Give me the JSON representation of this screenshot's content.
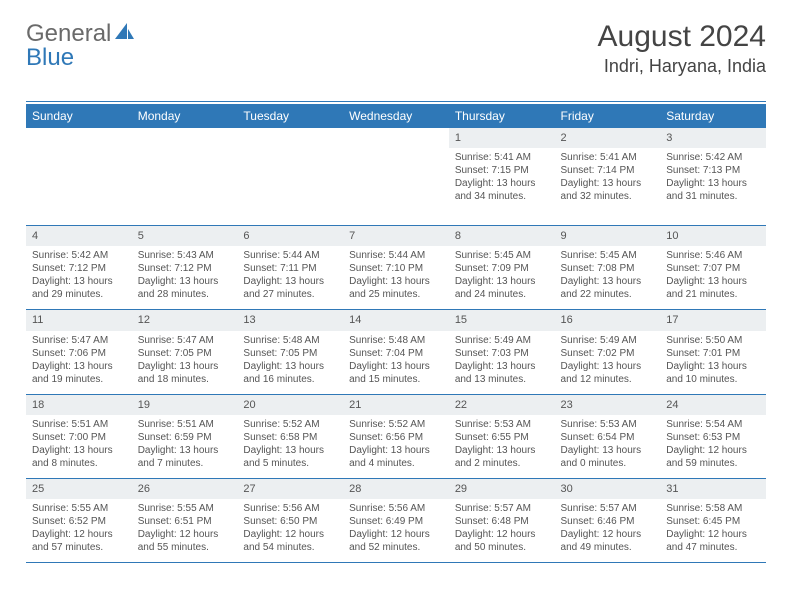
{
  "logo": {
    "word1": "General",
    "word2": "Blue"
  },
  "header": {
    "month_title": "August 2024",
    "location": "Indri, Haryana, India"
  },
  "colors": {
    "header_bg": "#2f78b7",
    "header_fg": "#ffffff",
    "daynum_bg": "#eceff1",
    "rule": "#2f78b7",
    "text": "#555555"
  },
  "day_headers": [
    "Sunday",
    "Monday",
    "Tuesday",
    "Wednesday",
    "Thursday",
    "Friday",
    "Saturday"
  ],
  "weeks": [
    [
      {
        "blank": true
      },
      {
        "blank": true
      },
      {
        "blank": true
      },
      {
        "blank": true
      },
      {
        "num": "1",
        "sunrise": "Sunrise: 5:41 AM",
        "sunset": "Sunset: 7:15 PM",
        "dl1": "Daylight: 13 hours",
        "dl2": "and 34 minutes."
      },
      {
        "num": "2",
        "sunrise": "Sunrise: 5:41 AM",
        "sunset": "Sunset: 7:14 PM",
        "dl1": "Daylight: 13 hours",
        "dl2": "and 32 minutes."
      },
      {
        "num": "3",
        "sunrise": "Sunrise: 5:42 AM",
        "sunset": "Sunset: 7:13 PM",
        "dl1": "Daylight: 13 hours",
        "dl2": "and 31 minutes."
      }
    ],
    [
      {
        "num": "4",
        "sunrise": "Sunrise: 5:42 AM",
        "sunset": "Sunset: 7:12 PM",
        "dl1": "Daylight: 13 hours",
        "dl2": "and 29 minutes."
      },
      {
        "num": "5",
        "sunrise": "Sunrise: 5:43 AM",
        "sunset": "Sunset: 7:12 PM",
        "dl1": "Daylight: 13 hours",
        "dl2": "and 28 minutes."
      },
      {
        "num": "6",
        "sunrise": "Sunrise: 5:44 AM",
        "sunset": "Sunset: 7:11 PM",
        "dl1": "Daylight: 13 hours",
        "dl2": "and 27 minutes."
      },
      {
        "num": "7",
        "sunrise": "Sunrise: 5:44 AM",
        "sunset": "Sunset: 7:10 PM",
        "dl1": "Daylight: 13 hours",
        "dl2": "and 25 minutes."
      },
      {
        "num": "8",
        "sunrise": "Sunrise: 5:45 AM",
        "sunset": "Sunset: 7:09 PM",
        "dl1": "Daylight: 13 hours",
        "dl2": "and 24 minutes."
      },
      {
        "num": "9",
        "sunrise": "Sunrise: 5:45 AM",
        "sunset": "Sunset: 7:08 PM",
        "dl1": "Daylight: 13 hours",
        "dl2": "and 22 minutes."
      },
      {
        "num": "10",
        "sunrise": "Sunrise: 5:46 AM",
        "sunset": "Sunset: 7:07 PM",
        "dl1": "Daylight: 13 hours",
        "dl2": "and 21 minutes."
      }
    ],
    [
      {
        "num": "11",
        "sunrise": "Sunrise: 5:47 AM",
        "sunset": "Sunset: 7:06 PM",
        "dl1": "Daylight: 13 hours",
        "dl2": "and 19 minutes."
      },
      {
        "num": "12",
        "sunrise": "Sunrise: 5:47 AM",
        "sunset": "Sunset: 7:05 PM",
        "dl1": "Daylight: 13 hours",
        "dl2": "and 18 minutes."
      },
      {
        "num": "13",
        "sunrise": "Sunrise: 5:48 AM",
        "sunset": "Sunset: 7:05 PM",
        "dl1": "Daylight: 13 hours",
        "dl2": "and 16 minutes."
      },
      {
        "num": "14",
        "sunrise": "Sunrise: 5:48 AM",
        "sunset": "Sunset: 7:04 PM",
        "dl1": "Daylight: 13 hours",
        "dl2": "and 15 minutes."
      },
      {
        "num": "15",
        "sunrise": "Sunrise: 5:49 AM",
        "sunset": "Sunset: 7:03 PM",
        "dl1": "Daylight: 13 hours",
        "dl2": "and 13 minutes."
      },
      {
        "num": "16",
        "sunrise": "Sunrise: 5:49 AM",
        "sunset": "Sunset: 7:02 PM",
        "dl1": "Daylight: 13 hours",
        "dl2": "and 12 minutes."
      },
      {
        "num": "17",
        "sunrise": "Sunrise: 5:50 AM",
        "sunset": "Sunset: 7:01 PM",
        "dl1": "Daylight: 13 hours",
        "dl2": "and 10 minutes."
      }
    ],
    [
      {
        "num": "18",
        "sunrise": "Sunrise: 5:51 AM",
        "sunset": "Sunset: 7:00 PM",
        "dl1": "Daylight: 13 hours",
        "dl2": "and 8 minutes."
      },
      {
        "num": "19",
        "sunrise": "Sunrise: 5:51 AM",
        "sunset": "Sunset: 6:59 PM",
        "dl1": "Daylight: 13 hours",
        "dl2": "and 7 minutes."
      },
      {
        "num": "20",
        "sunrise": "Sunrise: 5:52 AM",
        "sunset": "Sunset: 6:58 PM",
        "dl1": "Daylight: 13 hours",
        "dl2": "and 5 minutes."
      },
      {
        "num": "21",
        "sunrise": "Sunrise: 5:52 AM",
        "sunset": "Sunset: 6:56 PM",
        "dl1": "Daylight: 13 hours",
        "dl2": "and 4 minutes."
      },
      {
        "num": "22",
        "sunrise": "Sunrise: 5:53 AM",
        "sunset": "Sunset: 6:55 PM",
        "dl1": "Daylight: 13 hours",
        "dl2": "and 2 minutes."
      },
      {
        "num": "23",
        "sunrise": "Sunrise: 5:53 AM",
        "sunset": "Sunset: 6:54 PM",
        "dl1": "Daylight: 13 hours",
        "dl2": "and 0 minutes."
      },
      {
        "num": "24",
        "sunrise": "Sunrise: 5:54 AM",
        "sunset": "Sunset: 6:53 PM",
        "dl1": "Daylight: 12 hours",
        "dl2": "and 59 minutes."
      }
    ],
    [
      {
        "num": "25",
        "sunrise": "Sunrise: 5:55 AM",
        "sunset": "Sunset: 6:52 PM",
        "dl1": "Daylight: 12 hours",
        "dl2": "and 57 minutes."
      },
      {
        "num": "26",
        "sunrise": "Sunrise: 5:55 AM",
        "sunset": "Sunset: 6:51 PM",
        "dl1": "Daylight: 12 hours",
        "dl2": "and 55 minutes."
      },
      {
        "num": "27",
        "sunrise": "Sunrise: 5:56 AM",
        "sunset": "Sunset: 6:50 PM",
        "dl1": "Daylight: 12 hours",
        "dl2": "and 54 minutes."
      },
      {
        "num": "28",
        "sunrise": "Sunrise: 5:56 AM",
        "sunset": "Sunset: 6:49 PM",
        "dl1": "Daylight: 12 hours",
        "dl2": "and 52 minutes."
      },
      {
        "num": "29",
        "sunrise": "Sunrise: 5:57 AM",
        "sunset": "Sunset: 6:48 PM",
        "dl1": "Daylight: 12 hours",
        "dl2": "and 50 minutes."
      },
      {
        "num": "30",
        "sunrise": "Sunrise: 5:57 AM",
        "sunset": "Sunset: 6:46 PM",
        "dl1": "Daylight: 12 hours",
        "dl2": "and 49 minutes."
      },
      {
        "num": "31",
        "sunrise": "Sunrise: 5:58 AM",
        "sunset": "Sunset: 6:45 PM",
        "dl1": "Daylight: 12 hours",
        "dl2": "and 47 minutes."
      }
    ]
  ]
}
